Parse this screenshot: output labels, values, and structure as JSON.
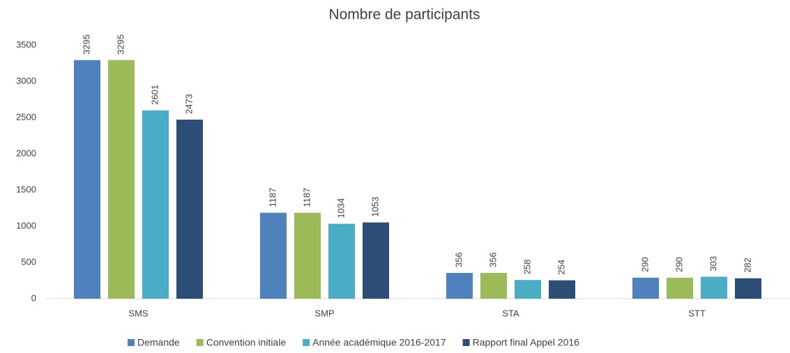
{
  "chart_data": {
    "type": "bar",
    "title": "Nombre de participants",
    "categories": [
      "SMS",
      "SMP",
      "STA",
      "STT"
    ],
    "series": [
      {
        "name": "Demande",
        "color": "#4f81bd",
        "values": [
          3295,
          1187,
          356,
          290
        ]
      },
      {
        "name": "Convention initiale",
        "color": "#9bbb59",
        "values": [
          3295,
          1187,
          356,
          290
        ]
      },
      {
        "name": "Année académique 2016-2017",
        "color": "#4bacc6",
        "values": [
          2601,
          1034,
          258,
          303
        ]
      },
      {
        "name": "Rapport final Appel 2016",
        "color": "#2c4d75",
        "values": [
          2473,
          1053,
          254,
          282
        ]
      }
    ],
    "ylim": [
      0,
      3500
    ],
    "yticks": [
      0,
      500,
      1000,
      1500,
      2000,
      2500,
      3000,
      3500
    ],
    "grid": false,
    "legend": "bottom"
  }
}
